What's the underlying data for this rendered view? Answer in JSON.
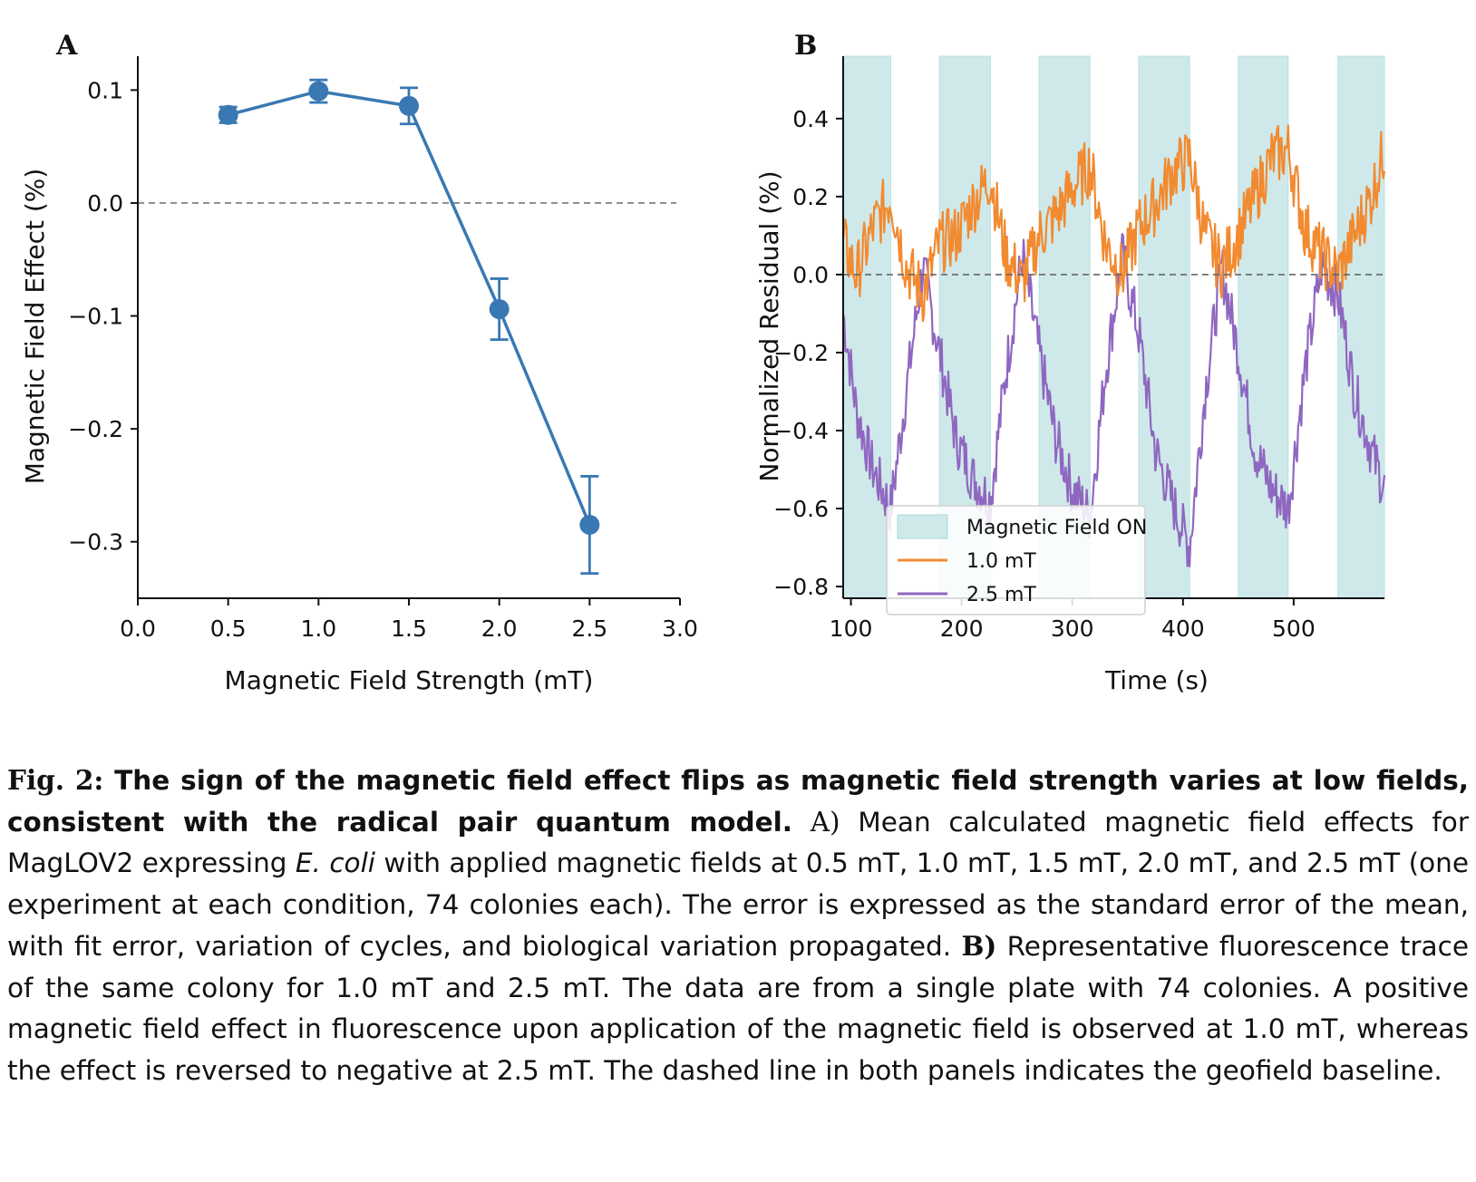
{
  "chart_data": [
    {
      "type": "line",
      "panel": "A",
      "xlabel": "Magnetic Field Strength (mT)",
      "ylabel": "Magnetic Field Effect (%)",
      "xlim": [
        0.0,
        3.0
      ],
      "ylim": [
        -0.35,
        0.13
      ],
      "xticks": [
        "0.0",
        "0.5",
        "1.0",
        "1.5",
        "2.0",
        "2.5",
        "3.0"
      ],
      "yticks": [
        "0.1",
        "0.0",
        "−0.1",
        "−0.2",
        "−0.3"
      ],
      "xtick_values": [
        0.0,
        0.5,
        1.0,
        1.5,
        2.0,
        2.5,
        3.0
      ],
      "ytick_values": [
        0.1,
        0.0,
        -0.1,
        -0.2,
        -0.3
      ],
      "x": [
        0.5,
        1.0,
        1.5,
        2.0,
        2.5
      ],
      "y": [
        0.078,
        0.099,
        0.086,
        -0.094,
        -0.285
      ],
      "yerr": [
        0.007,
        0.01,
        0.016,
        0.027,
        0.043
      ],
      "reference_line": 0.0,
      "color": "#3a78b3",
      "grid": false
    },
    {
      "type": "line",
      "panel": "B",
      "xlabel": "Time (s)",
      "ylabel": "Normalized Residual (%)",
      "xlim": [
        93,
        582
      ],
      "ylim": [
        -0.83,
        0.56
      ],
      "xticks": [
        "100",
        "200",
        "300",
        "400",
        "500"
      ],
      "yticks": [
        "0.4",
        "0.2",
        "0.0",
        "−0.2",
        "−0.4",
        "−0.6",
        "−0.8"
      ],
      "xtick_values": [
        100,
        200,
        300,
        400,
        500
      ],
      "ytick_values": [
        0.4,
        0.2,
        0.0,
        -0.2,
        -0.4,
        -0.6,
        -0.8
      ],
      "field_on_intervals": [
        [
          93,
          136
        ],
        [
          180,
          226
        ],
        [
          270,
          316
        ],
        [
          360,
          406
        ],
        [
          450,
          495
        ],
        [
          540,
          582
        ]
      ],
      "field_on_color": "#cfe9ea",
      "reference_line": 0.0,
      "legend_position": "lower-left",
      "legend": [
        "Magnetic Field ON",
        "1.0 mT",
        "2.5 mT"
      ],
      "series": [
        {
          "name": "1.0 mT",
          "color": "#f28a30",
          "x": [
            93,
            105,
            120,
            136,
            150,
            165,
            180,
            195,
            210,
            226,
            240,
            255,
            270,
            285,
            300,
            316,
            330,
            345,
            360,
            375,
            390,
            406,
            420,
            435,
            450,
            465,
            480,
            495,
            510,
            525,
            540,
            555,
            570,
            582
          ],
          "y": [
            0.08,
            0.0,
            0.12,
            0.2,
            0.02,
            -0.05,
            0.08,
            0.1,
            0.18,
            0.25,
            0.05,
            -0.02,
            0.1,
            0.15,
            0.22,
            0.28,
            0.08,
            0.0,
            0.12,
            0.18,
            0.26,
            0.3,
            0.1,
            0.02,
            0.1,
            0.2,
            0.3,
            0.32,
            0.12,
            0.05,
            0.0,
            0.1,
            0.2,
            0.32
          ]
        },
        {
          "name": "2.5 mT",
          "color": "#8f67c0",
          "x": [
            93,
            105,
            120,
            136,
            150,
            165,
            180,
            195,
            210,
            226,
            240,
            255,
            270,
            285,
            300,
            316,
            330,
            345,
            360,
            375,
            390,
            406,
            420,
            435,
            450,
            465,
            480,
            495,
            510,
            525,
            540,
            555,
            570,
            582
          ],
          "y": [
            -0.1,
            -0.35,
            -0.5,
            -0.6,
            -0.3,
            0.02,
            -0.2,
            -0.42,
            -0.52,
            -0.58,
            -0.25,
            0.05,
            -0.2,
            -0.42,
            -0.55,
            -0.62,
            -0.25,
            0.05,
            -0.15,
            -0.45,
            -0.58,
            -0.7,
            -0.3,
            0.02,
            -0.2,
            -0.45,
            -0.55,
            -0.6,
            -0.25,
            0.02,
            -0.05,
            -0.3,
            -0.45,
            -0.55
          ]
        }
      ]
    }
  ],
  "figure": {
    "panel_a_letter": "A",
    "panel_b_letter": "B"
  },
  "caption": {
    "fig_label": "Fig. 2:",
    "title": "The sign of the magnetic field effect flips as magnetic field strength varies at low fields, consistent with the radical pair quantum model.",
    "part_a_label": "A)",
    "part_a_text_1": "Mean calculated magnetic field effects for MagLOV2 expressing",
    "part_a_species": "E. coli",
    "part_a_text_2": "with applied magnetic fields at 0.5 mT, 1.0 mT, 1.5 mT, 2.0 mT, and 2.5 mT (one experiment at each condition, 74 colonies each).  The error is expressed as the standard error of the mean, with fit error, variation of cycles, and biological variation propagated.",
    "part_b_label": "B)",
    "part_b_text": "Representative fluorescence trace of the same colony for 1.0 mT and 2.5 mT. The data are from a single plate with 74 colonies. A positive magnetic field effect in fluorescence upon application of the magnetic field is observed at 1.0 mT, whereas the effect is reversed to negative at 2.5 mT. The dashed line in both panels indicates the geofield baseline."
  }
}
